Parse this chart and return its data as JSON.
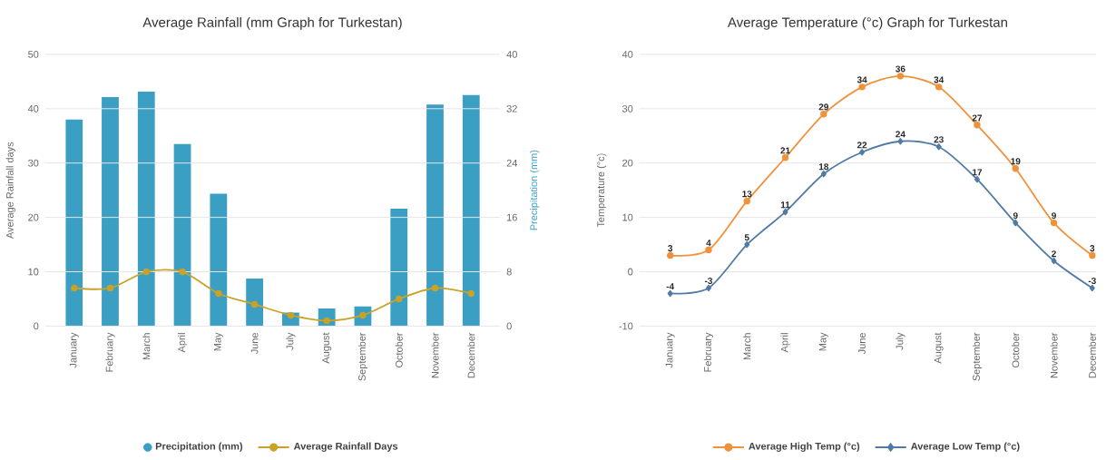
{
  "chart_data": [
    {
      "type": "bar",
      "title": "Average Rainfall (mm Graph for Turkestan)",
      "categories": [
        "January",
        "February",
        "March",
        "April",
        "May",
        "June",
        "July",
        "August",
        "September",
        "October",
        "November",
        "December"
      ],
      "ylabel": "Average Rainfall days",
      "y2label": "Precipitation (mm)",
      "ylim": [
        0,
        50
      ],
      "yticks": [
        0,
        10,
        20,
        30,
        40,
        50
      ],
      "y2lim": [
        0,
        40
      ],
      "y2ticks": [
        0,
        8,
        16,
        24,
        32,
        40
      ],
      "grid": "y",
      "legend": "bottom",
      "series": [
        {
          "name": "Precipitation (mm)",
          "color": "#3a9fc3",
          "axis": "y2",
          "values": [
            30.4,
            33.7,
            34.5,
            26.8,
            19.5,
            7.0,
            2.0,
            2.6,
            2.9,
            17.3,
            32.6,
            34.0
          ]
        },
        {
          "name": "Average Rainfall Days",
          "type": "line",
          "color": "#c9a227",
          "marker": "circle",
          "values": [
            7,
            7,
            10,
            10,
            6,
            4,
            2,
            1,
            2,
            5,
            7,
            6
          ]
        }
      ]
    },
    {
      "type": "line",
      "title": "Average Temperature (°c) Graph for Turkestan",
      "categories": [
        "January",
        "February",
        "March",
        "April",
        "May",
        "June",
        "July",
        "August",
        "September",
        "October",
        "November",
        "December"
      ],
      "ylabel": "Temperature (°c)",
      "ylim": [
        -10,
        40
      ],
      "yticks": [
        -10,
        0,
        10,
        20,
        30,
        40
      ],
      "grid": "y",
      "legend": "bottom",
      "data_labels": true,
      "series": [
        {
          "name": "Average High Temp (°c)",
          "color": "#f0923a",
          "marker": "circle",
          "values": [
            3,
            4,
            13,
            21,
            29,
            34,
            36,
            34,
            27,
            19,
            9,
            3
          ]
        },
        {
          "name": "Average Low Temp (°c)",
          "color": "#4f7ba6",
          "marker": "diamond",
          "values": [
            -4,
            -3,
            5,
            11,
            18,
            22,
            24,
            23,
            17,
            9,
            2,
            -3
          ]
        }
      ]
    }
  ]
}
